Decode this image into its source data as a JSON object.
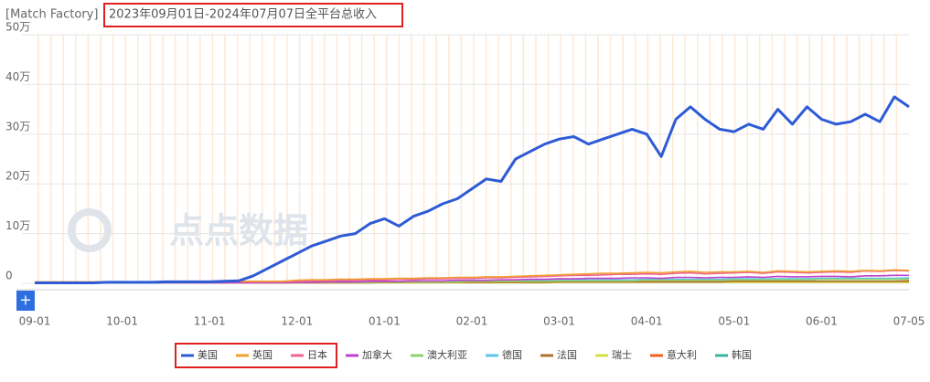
{
  "chart_data": {
    "type": "line",
    "subtitle": "[Match Factory]",
    "title": "2023年09月01日-2024年07月07日全平台总收入",
    "watermark": "点点数据",
    "categories": [
      "09-01",
      null,
      null,
      null,
      null,
      null,
      "10-01",
      null,
      null,
      null,
      null,
      null,
      "11-01",
      null,
      null,
      null,
      null,
      null,
      "12-01",
      null,
      null,
      null,
      null,
      null,
      "01-01",
      null,
      null,
      null,
      null,
      null,
      "02-01",
      null,
      null,
      null,
      null,
      null,
      "03-01",
      null,
      null,
      null,
      null,
      null,
      "04-01",
      null,
      null,
      null,
      null,
      null,
      "05-01",
      null,
      null,
      null,
      null,
      null,
      "06-01",
      null,
      null,
      null,
      null,
      null,
      "07-05"
    ],
    "ylim": [
      0,
      50
    ],
    "yticks": [
      0,
      {
        "value": 10,
        "label": "10万"
      },
      {
        "value": 20,
        "label": "20万"
      },
      {
        "value": 30,
        "label": "30万"
      },
      {
        "value": 40,
        "label": "40万"
      },
      {
        "value": 50,
        "label": "50万"
      }
    ],
    "grid": true,
    "series": [
      {
        "name": "美国",
        "color": "#2e5bd6",
        "values": [
          0.1,
          0.1,
          0.1,
          0.1,
          0.1,
          0.2,
          0.2,
          0.2,
          0.2,
          0.3,
          0.3,
          0.3,
          0.3,
          0.4,
          0.5,
          1.5,
          3,
          4.5,
          6,
          7.5,
          8.5,
          9.5,
          10,
          12,
          13,
          11.5,
          13.5,
          14.5,
          16,
          17,
          19,
          21,
          20.5,
          25,
          26.5,
          28,
          29,
          29.5,
          28,
          29,
          30,
          31,
          30,
          25.5,
          33,
          35.5,
          33,
          31,
          30.5,
          32,
          31,
          35,
          32,
          35.5,
          33,
          32,
          32.5,
          34,
          32.5,
          37.5,
          35.5
        ]
      },
      {
        "name": "英国",
        "color": "#f0a030",
        "values": [
          0.3,
          0.3,
          0.3,
          0.3,
          0.3,
          0.3,
          0.3,
          0.3,
          0.3,
          0.3,
          0.3,
          0.3,
          0.4,
          0.4,
          0.4,
          0.4,
          0.4,
          0.4,
          0.6,
          0.7,
          0.7,
          0.8,
          0.8,
          0.9,
          0.9,
          1,
          1,
          1.1,
          1.1,
          1.2,
          1.2,
          1.3,
          1.3,
          1.4,
          1.5,
          1.6,
          1.7,
          1.8,
          1.9,
          2,
          2,
          2.1,
          2.2,
          2.1,
          2.3,
          2.4,
          2.2,
          2.3,
          2.3,
          2.4,
          2.2,
          2.5,
          2.4,
          2.3,
          2.4,
          2.5,
          2.4,
          2.6,
          2.5,
          2.7,
          2.6
        ]
      },
      {
        "name": "日本",
        "color": "#f06292",
        "values": [
          0.2,
          0.2,
          0.2,
          0.2,
          0.2,
          0.2,
          0.2,
          0.2,
          0.2,
          0.2,
          0.2,
          0.2,
          0.3,
          0.3,
          0.3,
          0.3,
          0.3,
          0.3,
          0.4,
          0.5,
          0.5,
          0.6,
          0.6,
          0.7,
          0.7,
          0.8,
          0.8,
          0.9,
          0.9,
          1,
          1,
          1.1,
          1.1,
          1.2,
          1.3,
          1.4,
          1.5,
          1.6,
          1.6,
          1.7,
          1.8,
          1.8,
          1.9,
          1.8,
          2,
          2.1,
          1.9,
          2,
          2.1,
          2.2,
          2,
          2.3,
          2.2,
          2.1,
          2.2,
          2.3,
          2.2,
          2.5,
          2.4,
          2.6,
          2.5
        ]
      },
      {
        "name": "加拿大",
        "color": "#c040d0",
        "values": [
          0.1,
          0.1,
          0.1,
          0.1,
          0.1,
          0.1,
          0.1,
          0.1,
          0.1,
          0.1,
          0.1,
          0.1,
          0.1,
          0.1,
          0.1,
          0.1,
          0.1,
          0.1,
          0.2,
          0.2,
          0.3,
          0.3,
          0.3,
          0.4,
          0.4,
          0.4,
          0.5,
          0.5,
          0.5,
          0.6,
          0.6,
          0.6,
          0.7,
          0.7,
          0.8,
          0.8,
          0.9,
          0.9,
          1,
          1,
          1,
          1.1,
          1.1,
          1,
          1.2,
          1.2,
          1.1,
          1.2,
          1.2,
          1.3,
          1.2,
          1.4,
          1.3,
          1.3,
          1.4,
          1.4,
          1.3,
          1.5,
          1.5,
          1.6,
          1.6
        ]
      },
      {
        "name": "澳大利亚",
        "color": "#8ed16f",
        "values": [
          0.1,
          0.1,
          0.1,
          0.1,
          0.1,
          0.1,
          0.1,
          0.1,
          0.1,
          0.1,
          0.1,
          0.1,
          0.1,
          0.1,
          0.1,
          0.1,
          0.1,
          0.1,
          0.2,
          0.2,
          0.2,
          0.2,
          0.2,
          0.2,
          0.3,
          0.3,
          0.3,
          0.3,
          0.3,
          0.3,
          0.4,
          0.4,
          0.4,
          0.4,
          0.4,
          0.4,
          0.5,
          0.5,
          0.5,
          0.5,
          0.5,
          0.5,
          0.6,
          0.6,
          0.6,
          0.6,
          0.6,
          0.6,
          0.7,
          0.7,
          0.7,
          0.7,
          0.7,
          0.7,
          0.8,
          0.8,
          0.8,
          0.8,
          0.8,
          0.8,
          0.8
        ]
      },
      {
        "name": "德国",
        "color": "#5bc4e8",
        "values": [
          0.1,
          0.1,
          0.1,
          0.1,
          0.1,
          0.1,
          0.1,
          0.1,
          0.1,
          0.1,
          0.1,
          0.1,
          0.2,
          0.2,
          0.2,
          0.2,
          0.2,
          0.2,
          0.3,
          0.3,
          0.3,
          0.3,
          0.3,
          0.3,
          0.4,
          0.4,
          0.4,
          0.4,
          0.4,
          0.4,
          0.6,
          0.6,
          0.6,
          0.6,
          0.6,
          0.6,
          0.7,
          0.7,
          0.7,
          0.7,
          0.7,
          0.7,
          0.8,
          0.8,
          0.8,
          0.8,
          0.8,
          0.8,
          0.9,
          0.9,
          0.9,
          0.9,
          0.9,
          0.9,
          1,
          1,
          1,
          1,
          1,
          1,
          1.1
        ]
      },
      {
        "name": "法国",
        "color": "#b07030",
        "values": [
          0.1,
          0.1,
          0.1,
          0.1,
          0.1,
          0.1,
          0.1,
          0.1,
          0.1,
          0.1,
          0.1,
          0.1,
          0.1,
          0.1,
          0.1,
          0.1,
          0.1,
          0.1,
          0.1,
          0.1,
          0.1,
          0.1,
          0.1,
          0.1,
          0.2,
          0.2,
          0.2,
          0.2,
          0.2,
          0.2,
          0.2,
          0.2,
          0.2,
          0.2,
          0.2,
          0.2,
          0.3,
          0.3,
          0.3,
          0.3,
          0.3,
          0.3,
          0.3,
          0.3,
          0.3,
          0.3,
          0.3,
          0.3,
          0.4,
          0.4,
          0.4,
          0.4,
          0.4,
          0.4,
          0.4,
          0.4,
          0.4,
          0.4,
          0.4,
          0.4,
          0.4
        ]
      },
      {
        "name": "瑞士",
        "color": "#d4e040",
        "values": [
          0.1,
          0.1,
          0.1,
          0.1,
          0.1,
          0.1,
          0.1,
          0.1,
          0.1,
          0.1,
          0.1,
          0.1,
          0.1,
          0.1,
          0.1,
          0.1,
          0.1,
          0.1,
          0.1,
          0.1,
          0.1,
          0.1,
          0.1,
          0.1,
          0.1,
          0.1,
          0.1,
          0.1,
          0.1,
          0.1,
          0.1,
          0.1,
          0.1,
          0.1,
          0.1,
          0.1,
          0.2,
          0.2,
          0.2,
          0.2,
          0.2,
          0.2,
          0.2,
          0.2,
          0.2,
          0.2,
          0.2,
          0.2,
          0.2,
          0.2,
          0.2,
          0.2,
          0.2,
          0.2,
          0.2,
          0.2,
          0.2,
          0.2,
          0.2,
          0.2,
          0.2
        ]
      },
      {
        "name": "意大利",
        "color": "#f06020",
        "values": [
          0.1,
          0.1,
          0.1,
          0.1,
          0.1,
          0.1,
          0.1,
          0.1,
          0.1,
          0.1,
          0.1,
          0.1,
          0.1,
          0.1,
          0.1,
          0.1,
          0.1,
          0.1,
          0.1,
          0.1,
          0.1,
          0.1,
          0.1,
          0.1,
          0.2,
          0.2,
          0.2,
          0.2,
          0.2,
          0.2,
          0.2,
          0.2,
          0.2,
          0.2,
          0.2,
          0.2,
          0.3,
          0.3,
          0.3,
          0.3,
          0.3,
          0.3,
          0.3,
          0.3,
          0.3,
          0.3,
          0.3,
          0.3,
          0.4,
          0.4,
          0.4,
          0.4,
          0.4,
          0.4,
          0.4,
          0.4,
          0.4,
          0.4,
          0.4,
          0.4,
          0.5
        ]
      },
      {
        "name": "韩国",
        "color": "#3bb39b",
        "values": [
          0.1,
          0.1,
          0.1,
          0.1,
          0.1,
          0.1,
          0.1,
          0.1,
          0.1,
          0.1,
          0.1,
          0.1,
          0.1,
          0.1,
          0.1,
          0.1,
          0.1,
          0.1,
          0.2,
          0.2,
          0.2,
          0.2,
          0.2,
          0.2,
          0.3,
          0.3,
          0.3,
          0.3,
          0.3,
          0.3,
          0.4,
          0.4,
          0.4,
          0.4,
          0.4,
          0.4,
          0.5,
          0.5,
          0.5,
          0.5,
          0.5,
          0.5,
          0.6,
          0.6,
          0.6,
          0.6,
          0.6,
          0.6,
          0.7,
          0.7,
          0.7,
          0.7,
          0.7,
          0.7,
          0.8,
          0.8,
          0.8,
          0.8,
          0.8,
          0.8,
          0.9
        ]
      }
    ]
  }
}
